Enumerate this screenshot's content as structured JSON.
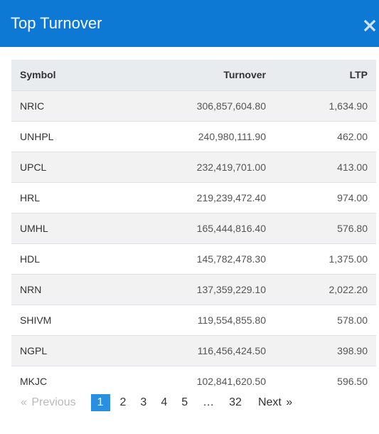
{
  "header": {
    "title": "Top Turnover",
    "close_icon": "close-icon"
  },
  "colors": {
    "header_bg": "#0e78d5",
    "active_page_bg": "#2a8fe0",
    "striped_row": "#f2f2f2",
    "table_head_bg": "#e9ecef"
  },
  "table": {
    "columns": [
      "Symbol",
      "Turnover",
      "LTP"
    ],
    "rows": [
      {
        "symbol": "NRIC",
        "turnover": "306,857,604.80",
        "ltp": "1,634.90"
      },
      {
        "symbol": "UNHPL",
        "turnover": "240,980,111.90",
        "ltp": "462.00"
      },
      {
        "symbol": "UPCL",
        "turnover": "232,419,701.00",
        "ltp": "413.00"
      },
      {
        "symbol": "HRL",
        "turnover": "219,239,472.40",
        "ltp": "974.00"
      },
      {
        "symbol": "UMHL",
        "turnover": "165,444,816.40",
        "ltp": "576.80"
      },
      {
        "symbol": "HDL",
        "turnover": "145,782,478.30",
        "ltp": "1,375.00"
      },
      {
        "symbol": "NRN",
        "turnover": "137,359,229.10",
        "ltp": "2,022.20"
      },
      {
        "symbol": "SHIVM",
        "turnover": "119,554,855.80",
        "ltp": "578.00"
      },
      {
        "symbol": "NGPL",
        "turnover": "116,456,424.50",
        "ltp": "398.90"
      },
      {
        "symbol": "MKJC",
        "turnover": "102,841,620.50",
        "ltp": "596.50"
      }
    ]
  },
  "pagination": {
    "prev_arrow": "«",
    "prev_label": "Previous",
    "pages": [
      "1",
      "2",
      "3",
      "4",
      "5"
    ],
    "ellipsis": "…",
    "last_page": "32",
    "next_label": "Next",
    "next_arrow": "»",
    "active_page": "1"
  }
}
